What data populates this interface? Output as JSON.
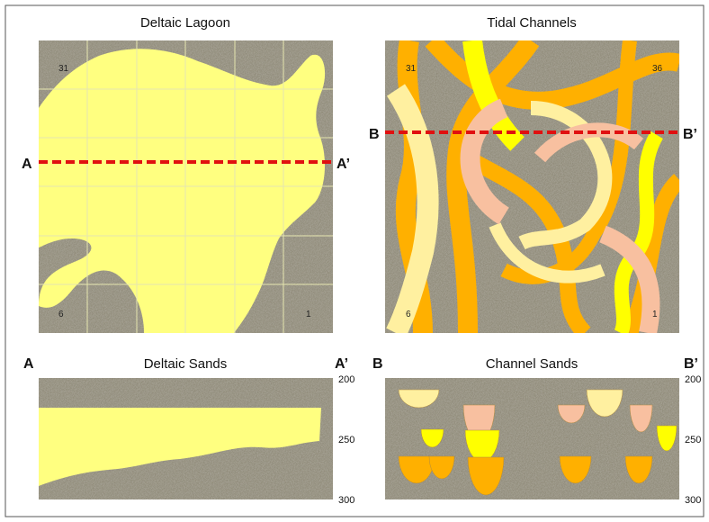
{
  "left_map": {
    "title": "Deltaic Lagoon",
    "section_labels": [
      "31",
      "6",
      "1"
    ],
    "line_start": "A",
    "line_end": "A’"
  },
  "right_map": {
    "title": "Tidal Channels",
    "section_labels": [
      "31",
      "36",
      "6",
      "1"
    ],
    "line_start": "B",
    "line_end": "B’"
  },
  "left_section": {
    "title": "Deltaic Sands",
    "start": "A",
    "end": "A’",
    "depths": [
      "200",
      "250",
      "300"
    ]
  },
  "right_section": {
    "title": "Channel Sands",
    "start": "B",
    "end": "B’",
    "depths": [
      "200",
      "250",
      "300"
    ]
  }
}
